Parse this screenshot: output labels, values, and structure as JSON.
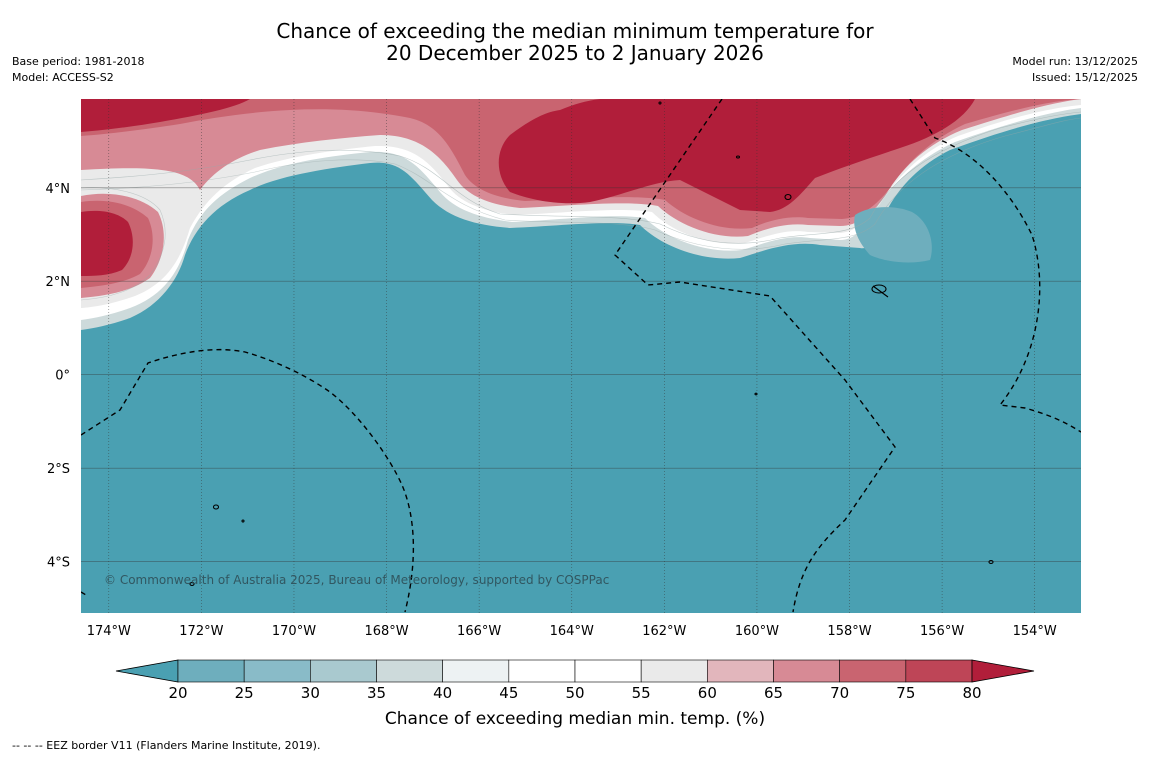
{
  "title": {
    "line1": "Chance of exceeding the median minimum temperature for",
    "line2": "20 December 2025 to 2 January 2026"
  },
  "meta_left": {
    "base_period": "Base period: 1981-2018",
    "model": "Model: ACCESS-S2"
  },
  "meta_right": {
    "model_run": "Model run: 13/12/2025",
    "issued": "Issued: 15/12/2025"
  },
  "map": {
    "lon_range": [
      -174.6,
      -153.0
    ],
    "lat_range": [
      -5.1,
      5.9
    ],
    "lon_ticks": [
      "174°W",
      "172°W",
      "170°W",
      "168°W",
      "166°W",
      "164°W",
      "162°W",
      "160°W",
      "158°W",
      "156°W",
      "154°W"
    ],
    "lat_ticks": [
      "4°N",
      "2°N",
      "0°",
      "2°S",
      "4°S"
    ],
    "copyright": "© Commonwealth of Australia 2025, Bureau of Meteorology, supported by COSPPac",
    "ocean_color": "#4aa0b2",
    "warm_color": "#b11e3a"
  },
  "colorbar": {
    "ticks": [
      "20",
      "25",
      "30",
      "35",
      "40",
      "45",
      "50",
      "55",
      "60",
      "65",
      "70",
      "75",
      "80"
    ],
    "colors": [
      "#6eaebd",
      "#89bbc8",
      "#a9c9cf",
      "#cddadb",
      "#edf2f3",
      "#ffffff",
      "#ffffff",
      "#eaeaea",
      "#e2b6bc",
      "#d78a95",
      "#c96470",
      "#be4557"
    ],
    "under_color": "#4aa0b2",
    "over_color": "#b11e3a",
    "label": "Chance of exceeding median min. temp. (%)"
  },
  "footnote": "--  --  -- EEZ border V11 (Flanders Marine Institute, 2019)."
}
